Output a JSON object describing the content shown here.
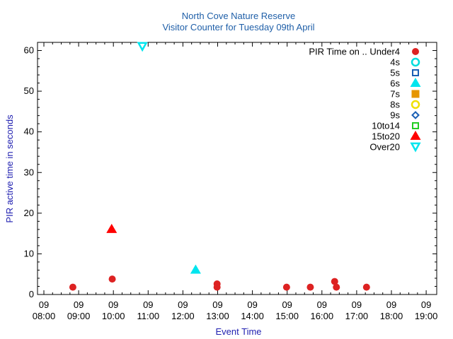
{
  "chart_data": {
    "type": "scatter",
    "title": "North Cove Nature Reserve",
    "subtitle": "Visitor Counter for Tuesday 09th April",
    "xlabel": "Event Time",
    "ylabel": "PIR active time in seconds",
    "xlim": [
      "08:00",
      "19:00"
    ],
    "ylim": [
      0,
      62
    ],
    "x_ticks": [
      {
        "day": "09",
        "time": "08:00"
      },
      {
        "day": "09",
        "time": "09:00"
      },
      {
        "day": "09",
        "time": "10:00"
      },
      {
        "day": "09",
        "time": "11:00"
      },
      {
        "day": "09",
        "time": "12:00"
      },
      {
        "day": "09",
        "time": "13:00"
      },
      {
        "day": "09",
        "time": "14:00"
      },
      {
        "day": "09",
        "time": "15:00"
      },
      {
        "day": "09",
        "time": "16:00"
      },
      {
        "day": "09",
        "time": "17:00"
      },
      {
        "day": "09",
        "time": "18:00"
      },
      {
        "day": "09",
        "time": "19:00"
      }
    ],
    "y_ticks": [
      0,
      10,
      20,
      30,
      40,
      50,
      60
    ],
    "grid": false,
    "legend_placement": "top-right",
    "legend_title": "PIR Time on ..",
    "series": [
      {
        "name": "Under4",
        "marker": "filled-circle",
        "color": "#dd2222",
        "points": [
          [
            "08:50",
            1.8
          ],
          [
            "09:58",
            3.8
          ],
          [
            "12:59",
            2.6
          ],
          [
            "12:59",
            1.8
          ],
          [
            "14:59",
            1.8
          ],
          [
            "15:40",
            1.8
          ],
          [
            "16:22",
            3.2
          ],
          [
            "16:25",
            1.8
          ],
          [
            "17:17",
            1.8
          ]
        ]
      },
      {
        "name": "4s",
        "marker": "open-circle",
        "color": "#00dddd",
        "points": []
      },
      {
        "name": "5s",
        "marker": "open-square",
        "color": "#1a5fb4",
        "points": []
      },
      {
        "name": "6s",
        "marker": "filled-triangle-up",
        "color": "#00e5ee",
        "points": [
          [
            "12:22",
            6.0
          ]
        ]
      },
      {
        "name": "7s",
        "marker": "filled-square",
        "color": "#e69500",
        "points": []
      },
      {
        "name": "8s",
        "marker": "open-circle",
        "color": "#f0e000",
        "points": []
      },
      {
        "name": "9s",
        "marker": "open-diamond",
        "color": "#1a5fb4",
        "points": []
      },
      {
        "name": "10to14",
        "marker": "open-square",
        "color": "#22cc22",
        "points": []
      },
      {
        "name": "15to20",
        "marker": "filled-triangle-up",
        "color": "#ff0000",
        "points": [
          [
            "09:57",
            16.0
          ]
        ]
      },
      {
        "name": "Over20",
        "marker": "open-triangle-down",
        "color": "#00e5ee",
        "points": [
          [
            "10:50",
            61.0
          ]
        ]
      }
    ]
  }
}
